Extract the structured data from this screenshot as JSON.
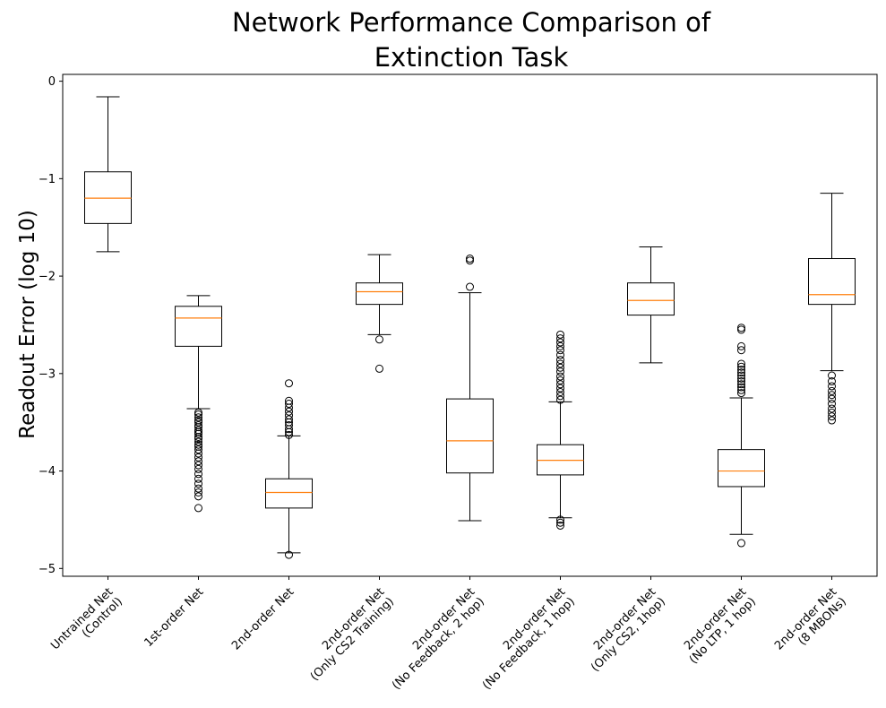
{
  "chart_data": {
    "type": "box",
    "title": "Network Performance Comparison of Extinction Task",
    "title_lines": [
      "Network Performance Comparison of",
      "Extinction Task"
    ],
    "ylabel": "Readout Error (log 10)",
    "xlabel": "",
    "ylim": [
      -5.08,
      0.07
    ],
    "yticks": [
      0,
      -1,
      -2,
      -3,
      -4,
      -5
    ],
    "grid": false,
    "colors": {
      "box": "#000000",
      "median": "#ff7f0e",
      "flier": "#000000"
    },
    "categories": [
      {
        "line1": "Untrained Net",
        "line2": "(Control)"
      },
      {
        "line1": "1st-order Net",
        "line2": ""
      },
      {
        "line1": "2nd-order Net",
        "line2": ""
      },
      {
        "line1": "2nd-order Net",
        "line2": "(Only CS2 Training)"
      },
      {
        "line1": "2nd-order Net",
        "line2": "(No Feedback, 2 hop)"
      },
      {
        "line1": "2nd-order Net",
        "line2": "(No Feedback, 1 hop)"
      },
      {
        "line1": "2nd-order Net",
        "line2": "(Only CS2, 1hop)"
      },
      {
        "line1": "2nd-order Net",
        "line2": "(No LTP, 1 hop)"
      },
      {
        "line1": "2nd-order Net",
        "line2": "(8 MBONs)"
      }
    ],
    "boxes": [
      {
        "whisker_low": -1.75,
        "q1": -1.46,
        "median": -1.2,
        "q3": -0.93,
        "whisker_high": -0.16,
        "fliers": []
      },
      {
        "whisker_low": -3.36,
        "q1": -2.72,
        "median": -2.43,
        "q3": -2.31,
        "whisker_high": -2.2,
        "fliers": [
          -3.4,
          -3.42,
          -3.45,
          -3.48,
          -3.5,
          -3.53,
          -3.55,
          -3.58,
          -3.6,
          -3.62,
          -3.65,
          -3.67,
          -3.7,
          -3.73,
          -3.75,
          -3.78,
          -3.82,
          -3.86,
          -3.9,
          -3.94,
          -3.98,
          -4.03,
          -4.08,
          -4.13,
          -4.18,
          -4.22,
          -4.26,
          -4.38
        ]
      },
      {
        "whisker_low": -4.84,
        "q1": -4.38,
        "median": -4.22,
        "q3": -4.08,
        "whisker_high": -3.64,
        "fliers": [
          -3.1,
          -3.28,
          -3.31,
          -3.35,
          -3.39,
          -3.43,
          -3.47,
          -3.5,
          -3.53,
          -3.57,
          -3.6,
          -3.63,
          -4.86
        ]
      },
      {
        "whisker_low": -2.6,
        "q1": -2.29,
        "median": -2.16,
        "q3": -2.07,
        "whisker_high": -1.78,
        "fliers": [
          -2.65,
          -2.95
        ]
      },
      {
        "whisker_low": -4.51,
        "q1": -4.02,
        "median": -3.69,
        "q3": -3.26,
        "whisker_high": -2.17,
        "fliers": [
          -1.82,
          -1.84,
          -2.11
        ]
      },
      {
        "whisker_low": -4.48,
        "q1": -4.04,
        "median": -3.89,
        "q3": -3.73,
        "whisker_high": -3.29,
        "fliers": [
          -2.6,
          -2.64,
          -2.68,
          -2.72,
          -2.76,
          -2.81,
          -2.86,
          -2.9,
          -2.94,
          -2.98,
          -3.03,
          -3.07,
          -3.11,
          -3.15,
          -3.19,
          -3.23,
          -3.27,
          -4.5,
          -4.53,
          -4.56
        ]
      },
      {
        "whisker_low": -2.89,
        "q1": -2.4,
        "median": -2.25,
        "q3": -2.07,
        "whisker_high": -1.7,
        "fliers": []
      },
      {
        "whisker_low": -4.65,
        "q1": -4.16,
        "median": -4.0,
        "q3": -3.78,
        "whisker_high": -3.25,
        "fliers": [
          -2.53,
          -2.55,
          -2.72,
          -2.76,
          -2.9,
          -2.93,
          -2.96,
          -2.99,
          -3.02,
          -3.05,
          -3.08,
          -3.11,
          -3.14,
          -3.17,
          -3.2,
          -4.74
        ]
      },
      {
        "whisker_low": -2.97,
        "q1": -2.29,
        "median": -2.19,
        "q3": -1.82,
        "whisker_high": -1.15,
        "fliers": [
          -3.02,
          -3.08,
          -3.13,
          -3.18,
          -3.22,
          -3.26,
          -3.31,
          -3.36,
          -3.4,
          -3.44,
          -3.48
        ]
      }
    ]
  }
}
